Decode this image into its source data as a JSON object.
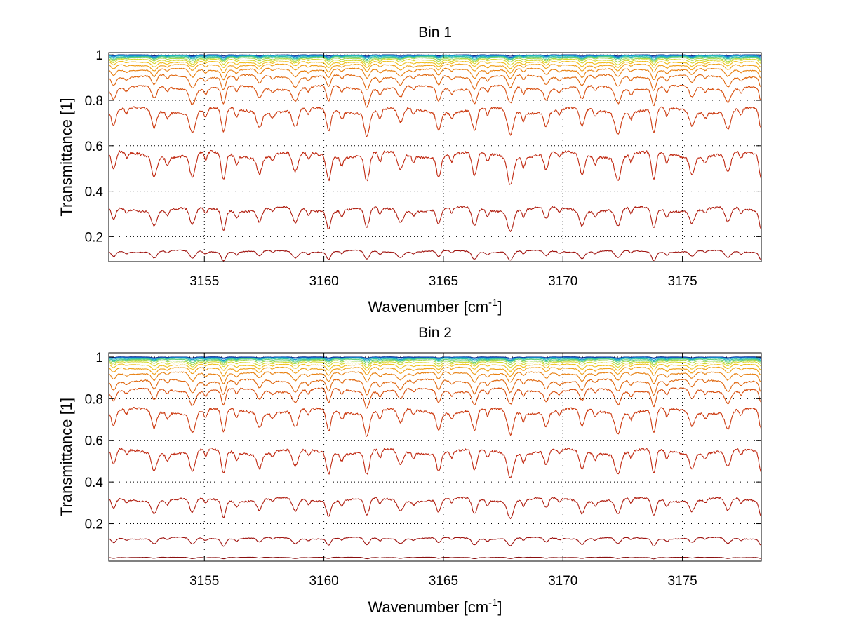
{
  "chart_data": [
    {
      "type": "line",
      "title": "Bin 1",
      "xlabel": "Wavenumber [cm",
      "xlabel_sup": "-1",
      "xlabel_end": "]",
      "ylabel": "Transmittance [1]",
      "xlim": [
        3151.0,
        3178.3
      ],
      "ylim": [
        0.09,
        1.01
      ],
      "xticks": [
        3155,
        3160,
        3165,
        3170,
        3175
      ],
      "xtick_labels": [
        "3155",
        "3160",
        "3165",
        "3170",
        "3175"
      ],
      "yticks": [
        0.2,
        0.4,
        0.6,
        0.8,
        1.0
      ],
      "ytick_labels": [
        "0.2",
        "0.4",
        "0.6",
        "0.8",
        "1"
      ],
      "grid": true,
      "absorption_lines": [
        3151.2,
        3152.9,
        3154.5,
        3155.8,
        3157.3,
        3158.8,
        3160.2,
        3161.8,
        3163.2,
        3164.8,
        3166.3,
        3167.8,
        3169.3,
        3170.8,
        3172.3,
        3173.8,
        3175.4,
        3176.9,
        3178.3
      ],
      "series": [
        {
          "baseline": 1.0,
          "depth": 0.004,
          "color": "#0a2a8a"
        },
        {
          "baseline": 0.998,
          "depth": 0.006,
          "color": "#1268c8"
        },
        {
          "baseline": 0.996,
          "depth": 0.008,
          "color": "#14a0c8"
        },
        {
          "baseline": 0.993,
          "depth": 0.01,
          "color": "#2ec0a8"
        },
        {
          "baseline": 0.99,
          "depth": 0.012,
          "color": "#6ad07a"
        },
        {
          "baseline": 0.985,
          "depth": 0.014,
          "color": "#a8d84a"
        },
        {
          "baseline": 0.978,
          "depth": 0.017,
          "color": "#d8d830"
        },
        {
          "baseline": 0.968,
          "depth": 0.02,
          "color": "#f0c020"
        },
        {
          "baseline": 0.955,
          "depth": 0.025,
          "color": "#f0a018"
        },
        {
          "baseline": 0.935,
          "depth": 0.032,
          "color": "#e88010"
        },
        {
          "baseline": 0.905,
          "depth": 0.045,
          "color": "#e06810"
        },
        {
          "baseline": 0.855,
          "depth": 0.06,
          "color": "#d85010"
        },
        {
          "baseline": 0.755,
          "depth": 0.085,
          "color": "#cc3a10"
        },
        {
          "baseline": 0.56,
          "depth": 0.095,
          "color": "#c02810"
        },
        {
          "baseline": 0.32,
          "depth": 0.07,
          "color": "#b01e10"
        },
        {
          "baseline": 0.135,
          "depth": 0.03,
          "color": "#a01410"
        }
      ]
    },
    {
      "type": "line",
      "title": "Bin 2",
      "xlabel": "Wavenumber [cm",
      "xlabel_sup": "-1",
      "xlabel_end": "]",
      "ylabel": "Transmittance [1]",
      "xlim": [
        3151.0,
        3178.3
      ],
      "ylim": [
        0.02,
        1.02
      ],
      "xticks": [
        3155,
        3160,
        3165,
        3170,
        3175
      ],
      "xtick_labels": [
        "3155",
        "3160",
        "3165",
        "3170",
        "3175"
      ],
      "yticks": [
        0.2,
        0.4,
        0.6,
        0.8,
        1.0
      ],
      "ytick_labels": [
        "0.2",
        "0.4",
        "0.6",
        "0.8",
        "1"
      ],
      "grid": true,
      "absorption_lines": [
        3151.2,
        3152.9,
        3154.5,
        3155.8,
        3157.3,
        3158.8,
        3160.2,
        3161.8,
        3163.2,
        3164.8,
        3166.3,
        3167.8,
        3169.3,
        3170.8,
        3172.3,
        3173.8,
        3175.4,
        3176.9,
        3178.3
      ],
      "series": [
        {
          "baseline": 1.0,
          "depth": 0.004,
          "color": "#0a2a8a"
        },
        {
          "baseline": 0.998,
          "depth": 0.006,
          "color": "#1268c8"
        },
        {
          "baseline": 0.995,
          "depth": 0.008,
          "color": "#14a0c8"
        },
        {
          "baseline": 0.992,
          "depth": 0.01,
          "color": "#2ec0a8"
        },
        {
          "baseline": 0.988,
          "depth": 0.012,
          "color": "#6ad07a"
        },
        {
          "baseline": 0.982,
          "depth": 0.015,
          "color": "#a8d84a"
        },
        {
          "baseline": 0.974,
          "depth": 0.018,
          "color": "#d8d830"
        },
        {
          "baseline": 0.962,
          "depth": 0.022,
          "color": "#f0c020"
        },
        {
          "baseline": 0.946,
          "depth": 0.028,
          "color": "#f0a018"
        },
        {
          "baseline": 0.922,
          "depth": 0.036,
          "color": "#e88010"
        },
        {
          "baseline": 0.885,
          "depth": 0.05,
          "color": "#e06810"
        },
        {
          "baseline": 0.84,
          "depth": 0.06,
          "color": "#d85010"
        },
        {
          "baseline": 0.74,
          "depth": 0.09,
          "color": "#cc3a10"
        },
        {
          "baseline": 0.545,
          "depth": 0.09,
          "color": "#c02810"
        },
        {
          "baseline": 0.315,
          "depth": 0.065,
          "color": "#b01e10"
        },
        {
          "baseline": 0.13,
          "depth": 0.028,
          "color": "#a01410"
        },
        {
          "baseline": 0.038,
          "depth": 0.005,
          "color": "#8a1010"
        }
      ]
    }
  ]
}
